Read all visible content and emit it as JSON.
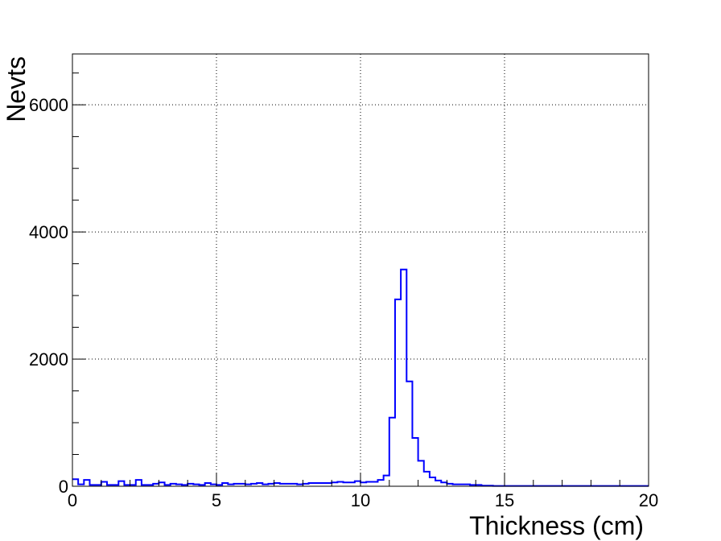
{
  "chart_data": {
    "type": "bar",
    "histogram": true,
    "title": "",
    "xlabel": "Thickness (cm)",
    "ylabel": "Nevts",
    "xlim": [
      0,
      20
    ],
    "ylim": [
      0,
      6800
    ],
    "grid": true,
    "legend": "none",
    "bin_width": 0.2,
    "x_ticks": [
      0,
      5,
      10,
      15,
      20
    ],
    "y_ticks": [
      0,
      2000,
      4000,
      6000
    ],
    "series": [
      {
        "color": "#0000ff",
        "x": [
          0.0,
          0.2,
          0.4,
          0.6,
          0.8,
          1.0,
          1.2,
          1.4,
          1.6,
          1.8,
          2.0,
          2.2,
          2.4,
          2.6,
          2.8,
          3.0,
          3.2,
          3.4,
          3.6,
          3.8,
          4.0,
          4.2,
          4.4,
          4.6,
          4.8,
          5.0,
          5.2,
          5.4,
          5.6,
          5.8,
          6.0,
          6.2,
          6.4,
          6.6,
          6.8,
          7.0,
          7.2,
          7.4,
          7.6,
          7.8,
          8.0,
          8.2,
          8.4,
          8.6,
          8.8,
          9.0,
          9.2,
          9.4,
          9.6,
          9.8,
          10.0,
          10.2,
          10.4,
          10.6,
          10.8,
          11.0,
          11.2,
          11.4,
          11.6,
          11.8,
          12.0,
          12.2,
          12.4,
          12.6,
          12.8,
          13.0,
          13.2,
          13.4,
          13.6,
          13.8,
          14.0,
          14.2,
          14.4,
          14.6,
          14.8,
          15.0,
          15.2,
          15.4,
          15.6,
          15.8,
          16.0,
          16.2,
          16.4,
          16.6,
          16.8,
          17.0,
          17.2,
          17.4,
          17.6,
          17.8,
          18.0,
          18.2,
          18.4,
          18.6,
          18.8,
          19.0,
          19.2,
          19.4,
          19.6,
          19.8
        ],
        "values": [
          110,
          30,
          100,
          20,
          20,
          70,
          20,
          20,
          80,
          20,
          20,
          100,
          20,
          20,
          40,
          60,
          20,
          40,
          30,
          20,
          40,
          30,
          20,
          50,
          30,
          20,
          50,
          30,
          40,
          40,
          30,
          40,
          50,
          30,
          40,
          50,
          40,
          40,
          40,
          30,
          40,
          50,
          50,
          50,
          50,
          60,
          70,
          60,
          60,
          80,
          60,
          70,
          70,
          100,
          170,
          1080,
          2940,
          3410,
          1650,
          760,
          400,
          230,
          140,
          90,
          60,
          40,
          30,
          30,
          30,
          20,
          20,
          10,
          10,
          5,
          5,
          5,
          5,
          5,
          5,
          5,
          5,
          5,
          5,
          5,
          5,
          5,
          5,
          5,
          5,
          5,
          5,
          5,
          5,
          5,
          5,
          5,
          5,
          5,
          5,
          5
        ]
      }
    ]
  }
}
